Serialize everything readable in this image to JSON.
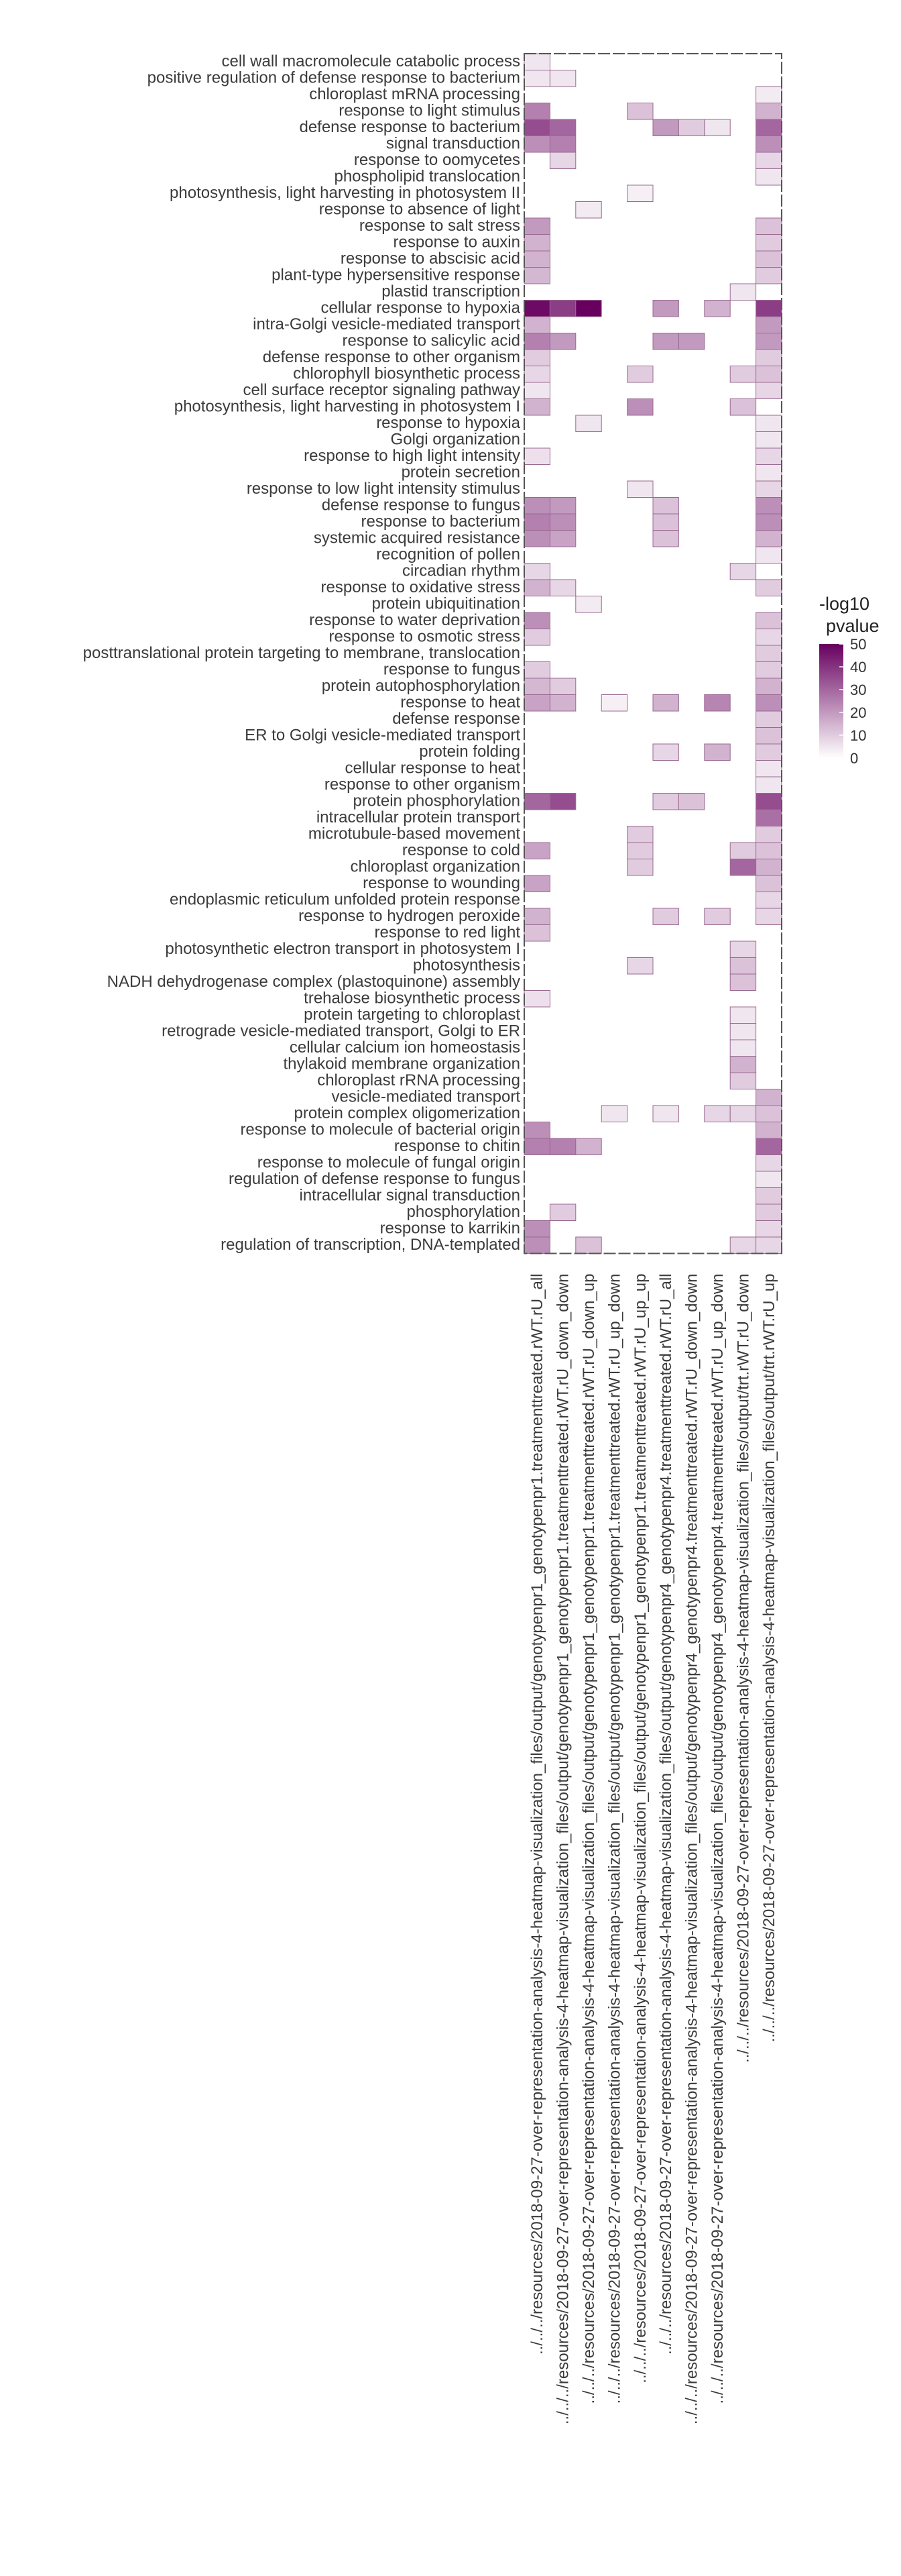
{
  "chart_data": {
    "type": "heatmap",
    "title": "",
    "xlabel": "",
    "ylabel": "",
    "rows": [
      "cell wall macromolecule catabolic process",
      "positive regulation of defense response to bacterium",
      "chloroplast mRNA processing",
      "response to light stimulus",
      "defense response to bacterium",
      "signal transduction",
      "response to oomycetes",
      "phospholipid translocation",
      "photosynthesis, light harvesting in photosystem II",
      "response to absence of light",
      "response to salt stress",
      "response to auxin",
      "response to abscisic acid",
      "plant-type hypersensitive response",
      "plastid transcription",
      "cellular response to hypoxia",
      "intra-Golgi vesicle-mediated transport",
      "response to salicylic acid",
      "defense response to other organism",
      "chlorophyll biosynthetic process",
      "cell surface receptor signaling pathway",
      "photosynthesis, light harvesting in photosystem I",
      "response to hypoxia",
      "Golgi organization",
      "response to high light intensity",
      "protein secretion",
      "response to low light intensity stimulus",
      "defense response to fungus",
      "response to bacterium",
      "systemic acquired resistance",
      "recognition of pollen",
      "circadian rhythm",
      "response to oxidative stress",
      "protein ubiquitination",
      "response to water deprivation",
      "response to osmotic stress",
      "posttranslational protein targeting to membrane, translocation",
      "response to fungus",
      "protein autophosphorylation",
      "response to heat",
      "defense response",
      "ER to Golgi vesicle-mediated transport",
      "protein folding",
      "cellular response to heat",
      "response to other organism",
      "protein phosphorylation",
      "intracellular protein transport",
      "microtubule-based movement",
      "response to cold",
      "chloroplast organization",
      "response to wounding",
      "endoplasmic reticulum unfolded protein response",
      "response to hydrogen peroxide",
      "response to red light",
      "photosynthetic electron transport in photosystem I",
      "photosynthesis",
      "NADH dehydrogenase complex (plastoquinone) assembly",
      "trehalose biosynthetic process",
      "protein targeting to chloroplast",
      "retrograde vesicle-mediated transport, Golgi to ER",
      "cellular calcium ion homeostasis",
      "thylakoid membrane organization",
      "chloroplast rRNA processing",
      "vesicle-mediated transport",
      "protein complex oligomerization",
      "response to molecule of bacterial origin",
      "response to chitin",
      "response to molecule of fungal origin",
      "regulation of defense response to fungus",
      "intracellular signal transduction",
      "phosphorylation",
      "response to karrikin",
      "regulation of transcription, DNA-templated"
    ],
    "columns": [
      "../../../resources/2018-09-27-over-representation-analysis-4-heatmap-visualization_files/output/genotypenpr1_genotypenpr1.treatmenttreated.rWT.rU_all",
      "../../../resources/2018-09-27-over-representation-analysis-4-heatmap-visualization_files/output/genotypenpr1_genotypenpr1.treatmenttreated.rWT.rU_down_down",
      "../../../resources/2018-09-27-over-representation-analysis-4-heatmap-visualization_files/output/genotypenpr1_genotypenpr1.treatmenttreated.rWT.rU_down_up",
      "../../../resources/2018-09-27-over-representation-analysis-4-heatmap-visualization_files/output/genotypenpr1_genotypenpr1.treatmenttreated.rWT.rU_up_down",
      "../../../resources/2018-09-27-over-representation-analysis-4-heatmap-visualization_files/output/genotypenpr1_genotypenpr1.treatmenttreated.rWT.rU_up_up",
      "../../../resources/2018-09-27-over-representation-analysis-4-heatmap-visualization_files/output/genotypenpr4_genotypenpr4.treatmenttreated.rWT.rU_all",
      "../../../resources/2018-09-27-over-representation-analysis-4-heatmap-visualization_files/output/genotypenpr4_genotypenpr4.treatmenttreated.rWT.rU_down_down",
      "../../../resources/2018-09-27-over-representation-analysis-4-heatmap-visualization_files/output/genotypenpr4_genotypenpr4.treatmenttreated.rWT.rU_up_down",
      "../../../resources/2018-09-27-over-representation-analysis-4-heatmap-visualization_files/output/trt.rWT.rU_down",
      "../../../resources/2018-09-27-over-representation-analysis-4-heatmap-visualization_files/output/trt.rWT.rU_up"
    ],
    "cells": [
      [
        0,
        0,
        5
      ],
      [
        1,
        0,
        5
      ],
      [
        1,
        1,
        5
      ],
      [
        2,
        9,
        4
      ],
      [
        3,
        0,
        25
      ],
      [
        3,
        4,
        12
      ],
      [
        3,
        9,
        15
      ],
      [
        4,
        0,
        35
      ],
      [
        4,
        1,
        30
      ],
      [
        4,
        5,
        20
      ],
      [
        4,
        6,
        10
      ],
      [
        4,
        7,
        5
      ],
      [
        4,
        9,
        30
      ],
      [
        5,
        0,
        22
      ],
      [
        5,
        1,
        25
      ],
      [
        5,
        9,
        22
      ],
      [
        6,
        1,
        8
      ],
      [
        6,
        9,
        8
      ],
      [
        7,
        9,
        5
      ],
      [
        8,
        4,
        3
      ],
      [
        9,
        2,
        4
      ],
      [
        10,
        0,
        20
      ],
      [
        10,
        9,
        12
      ],
      [
        11,
        0,
        15
      ],
      [
        11,
        9,
        10
      ],
      [
        12,
        0,
        15
      ],
      [
        12,
        9,
        12
      ],
      [
        13,
        0,
        14
      ],
      [
        13,
        9,
        10
      ],
      [
        14,
        8,
        5
      ],
      [
        15,
        0,
        48
      ],
      [
        15,
        1,
        38
      ],
      [
        15,
        2,
        50
      ],
      [
        15,
        5,
        20
      ],
      [
        15,
        7,
        15
      ],
      [
        15,
        9,
        38
      ],
      [
        16,
        0,
        15
      ],
      [
        16,
        9,
        20
      ],
      [
        17,
        0,
        25
      ],
      [
        17,
        1,
        20
      ],
      [
        17,
        5,
        20
      ],
      [
        17,
        6,
        20
      ],
      [
        17,
        9,
        20
      ],
      [
        18,
        0,
        10
      ],
      [
        18,
        9,
        10
      ],
      [
        19,
        0,
        8
      ],
      [
        19,
        4,
        10
      ],
      [
        19,
        8,
        10
      ],
      [
        19,
        9,
        12
      ],
      [
        20,
        0,
        5
      ],
      [
        20,
        9,
        8
      ],
      [
        21,
        0,
        15
      ],
      [
        21,
        4,
        22
      ],
      [
        21,
        8,
        12
      ],
      [
        22,
        2,
        5
      ],
      [
        22,
        9,
        5
      ],
      [
        23,
        9,
        5
      ],
      [
        24,
        0,
        6
      ],
      [
        24,
        9,
        8
      ],
      [
        25,
        9,
        5
      ],
      [
        26,
        4,
        5
      ],
      [
        26,
        9,
        8
      ],
      [
        27,
        0,
        22
      ],
      [
        27,
        1,
        20
      ],
      [
        27,
        5,
        12
      ],
      [
        27,
        9,
        22
      ],
      [
        28,
        0,
        25
      ],
      [
        28,
        1,
        22
      ],
      [
        28,
        5,
        12
      ],
      [
        28,
        9,
        22
      ],
      [
        29,
        0,
        22
      ],
      [
        29,
        1,
        18
      ],
      [
        29,
        5,
        12
      ],
      [
        29,
        9,
        15
      ],
      [
        30,
        9,
        5
      ],
      [
        31,
        0,
        8
      ],
      [
        31,
        8,
        8
      ],
      [
        32,
        0,
        15
      ],
      [
        32,
        1,
        8
      ],
      [
        32,
        9,
        10
      ],
      [
        33,
        2,
        4
      ],
      [
        34,
        0,
        22
      ],
      [
        34,
        9,
        12
      ],
      [
        35,
        0,
        10
      ],
      [
        35,
        9,
        8
      ],
      [
        36,
        9,
        10
      ],
      [
        37,
        0,
        10
      ],
      [
        37,
        9,
        10
      ],
      [
        38,
        0,
        14
      ],
      [
        38,
        1,
        10
      ],
      [
        38,
        9,
        15
      ],
      [
        39,
        0,
        18
      ],
      [
        39,
        1,
        15
      ],
      [
        39,
        3,
        3
      ],
      [
        39,
        5,
        15
      ],
      [
        39,
        7,
        24
      ],
      [
        39,
        9,
        22
      ],
      [
        40,
        9,
        10
      ],
      [
        41,
        9,
        12
      ],
      [
        42,
        5,
        8
      ],
      [
        42,
        7,
        15
      ],
      [
        42,
        9,
        10
      ],
      [
        43,
        9,
        5
      ],
      [
        44,
        9,
        5
      ],
      [
        45,
        0,
        30
      ],
      [
        45,
        1,
        35
      ],
      [
        45,
        5,
        10
      ],
      [
        45,
        6,
        12
      ],
      [
        45,
        9,
        35
      ],
      [
        46,
        9,
        28
      ],
      [
        47,
        4,
        10
      ],
      [
        47,
        9,
        10
      ],
      [
        48,
        0,
        18
      ],
      [
        48,
        4,
        10
      ],
      [
        48,
        8,
        10
      ],
      [
        48,
        9,
        12
      ],
      [
        49,
        4,
        10
      ],
      [
        49,
        8,
        30
      ],
      [
        49,
        9,
        15
      ],
      [
        50,
        0,
        18
      ],
      [
        50,
        9,
        12
      ],
      [
        51,
        9,
        8
      ],
      [
        52,
        0,
        15
      ],
      [
        52,
        5,
        10
      ],
      [
        52,
        7,
        10
      ],
      [
        52,
        9,
        8
      ],
      [
        53,
        0,
        12
      ],
      [
        54,
        8,
        8
      ],
      [
        55,
        4,
        8
      ],
      [
        55,
        8,
        12
      ],
      [
        56,
        8,
        12
      ],
      [
        57,
        0,
        6
      ],
      [
        58,
        8,
        5
      ],
      [
        59,
        8,
        5
      ],
      [
        60,
        8,
        5
      ],
      [
        61,
        8,
        15
      ],
      [
        62,
        8,
        10
      ],
      [
        63,
        9,
        15
      ],
      [
        64,
        3,
        5
      ],
      [
        64,
        5,
        5
      ],
      [
        64,
        7,
        8
      ],
      [
        64,
        8,
        8
      ],
      [
        64,
        9,
        12
      ],
      [
        65,
        0,
        22
      ],
      [
        65,
        9,
        15
      ],
      [
        66,
        0,
        25
      ],
      [
        66,
        1,
        25
      ],
      [
        66,
        2,
        15
      ],
      [
        66,
        9,
        30
      ],
      [
        67,
        9,
        8
      ],
      [
        68,
        9,
        5
      ],
      [
        69,
        9,
        10
      ],
      [
        70,
        1,
        10
      ],
      [
        70,
        9,
        10
      ],
      [
        71,
        0,
        22
      ],
      [
        71,
        9,
        8
      ],
      [
        72,
        0,
        22
      ],
      [
        72,
        2,
        12
      ],
      [
        72,
        8,
        8
      ],
      [
        72,
        9,
        8
      ]
    ],
    "legend": {
      "title": [
        "-log10",
        "pvalue"
      ],
      "min": 0,
      "max": 50,
      "ticks": [
        0,
        10,
        20,
        30,
        40,
        50
      ],
      "low_color": "#ffffff",
      "high_color": "#67005f",
      "placement": "right"
    },
    "grid": false
  }
}
